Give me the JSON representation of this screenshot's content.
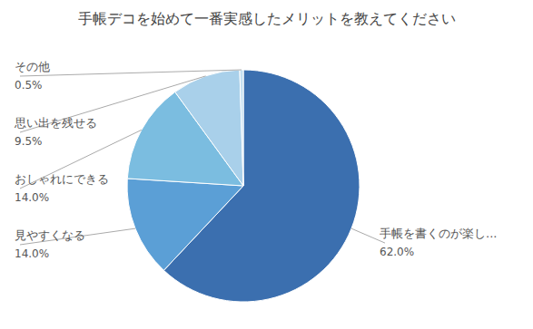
{
  "chart_data": {
    "type": "pie",
    "title": "手帳デコを始めて一番実感したメリットを教えてください",
    "categories": [
      "手帳を書くのが楽し...",
      "見やすくなる",
      "おしゃれにできる",
      "思い出を残せる",
      "その他"
    ],
    "values": [
      62.0,
      14.0,
      14.0,
      9.5,
      0.5
    ],
    "value_labels": [
      "62.0%",
      "14.0%",
      "14.0%",
      "9.5%",
      "0.5%"
    ],
    "colors": [
      "#3b6faf",
      "#5b9fd6",
      "#7bbde0",
      "#a9d0ea",
      "#c4dff1"
    ],
    "data_labels": true
  }
}
